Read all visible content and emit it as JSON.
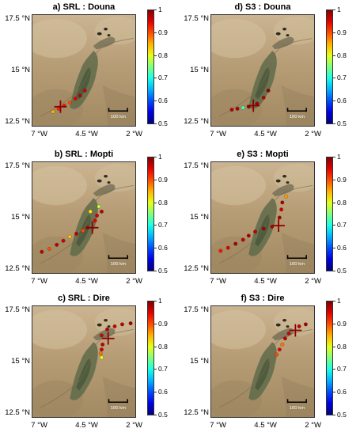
{
  "colorbar": {
    "ticks": [
      "1",
      "0.9",
      "0.8",
      "0.7",
      "0.6",
      "0.5"
    ],
    "min": 0.5,
    "max": 1.0
  },
  "axes": {
    "y_ticks": [
      {
        "label": "17.5 °N",
        "lat": 17.5
      },
      {
        "label": "15 °N",
        "lat": 15.0
      },
      {
        "label": "12.5 °N",
        "lat": 12.5
      }
    ],
    "x_ticks": [
      {
        "label": "7 °W",
        "lon": -7.0
      },
      {
        "label": "4.5 °W",
        "lon": -4.5
      },
      {
        "label": "2 °W",
        "lon": -2.0
      }
    ]
  },
  "scale_bar_label": "100 km",
  "panels": [
    {
      "title": "a) SRL : Douna",
      "station": {
        "lon": -5.9,
        "lat": 13.2
      },
      "points": [
        {
          "lon": -6.3,
          "lat": 12.95,
          "r": 0.85
        },
        {
          "lon": -6.0,
          "lat": 13.1,
          "r": 0.92
        },
        {
          "lon": -5.7,
          "lat": 13.25,
          "r": 0.93
        },
        {
          "lon": -5.4,
          "lat": 13.4,
          "r": 0.9
        },
        {
          "lon": -5.1,
          "lat": 13.6,
          "r": 0.95
        },
        {
          "lon": -4.85,
          "lat": 13.75,
          "r": 0.97
        },
        {
          "lon": -4.6,
          "lat": 14.0,
          "r": 0.96
        }
      ]
    },
    {
      "title": "d) S3 : Douna",
      "station": {
        "lon": -5.15,
        "lat": 13.25
      },
      "points": [
        {
          "lon": -6.3,
          "lat": 13.05,
          "r": 0.97
        },
        {
          "lon": -6.0,
          "lat": 13.1,
          "r": 0.98
        },
        {
          "lon": -5.7,
          "lat": 13.15,
          "r": 0.72
        },
        {
          "lon": -5.4,
          "lat": 13.2,
          "r": 0.99
        },
        {
          "lon": -4.95,
          "lat": 13.35,
          "r": 0.98
        },
        {
          "lon": -4.6,
          "lat": 13.65,
          "r": 0.97
        },
        {
          "lon": -4.35,
          "lat": 14.0,
          "r": 0.99
        }
      ]
    },
    {
      "title": "b) SRL : Mopti",
      "station": {
        "lon": -4.2,
        "lat": 14.5
      },
      "points": [
        {
          "lon": -6.9,
          "lat": 13.3,
          "r": 0.97
        },
        {
          "lon": -6.5,
          "lat": 13.45,
          "r": 0.9
        },
        {
          "lon": -6.1,
          "lat": 13.65,
          "r": 0.97
        },
        {
          "lon": -5.75,
          "lat": 13.85,
          "r": 0.96
        },
        {
          "lon": -5.4,
          "lat": 14.05,
          "r": 0.84
        },
        {
          "lon": -5.05,
          "lat": 14.2,
          "r": 0.97
        },
        {
          "lon": -4.7,
          "lat": 14.35,
          "r": 0.9
        },
        {
          "lon": -4.45,
          "lat": 14.5,
          "r": 0.97
        },
        {
          "lon": -4.05,
          "lat": 14.85,
          "r": 0.95
        },
        {
          "lon": -3.95,
          "lat": 15.1,
          "r": 0.96
        },
        {
          "lon": -4.3,
          "lat": 15.3,
          "r": 0.82
        },
        {
          "lon": -3.7,
          "lat": 15.3,
          "r": 0.97
        },
        {
          "lon": -3.85,
          "lat": 15.55,
          "r": 0.78
        }
      ]
    },
    {
      "title": "e) S3 : Mopti",
      "station": {
        "lon": -3.8,
        "lat": 14.6
      },
      "points": [
        {
          "lon": -6.9,
          "lat": 13.35,
          "r": 0.93
        },
        {
          "lon": -6.5,
          "lat": 13.5,
          "r": 0.95
        },
        {
          "lon": -6.1,
          "lat": 13.7,
          "r": 0.98
        },
        {
          "lon": -5.7,
          "lat": 13.9,
          "r": 0.97
        },
        {
          "lon": -5.4,
          "lat": 14.1,
          "r": 0.98
        },
        {
          "lon": -5.05,
          "lat": 14.3,
          "r": 0.97
        },
        {
          "lon": -4.6,
          "lat": 14.45,
          "r": 0.98
        },
        {
          "lon": -4.15,
          "lat": 14.55,
          "r": 0.97
        },
        {
          "lon": -3.75,
          "lat": 15.0,
          "r": 0.98
        },
        {
          "lon": -3.65,
          "lat": 15.4,
          "r": 0.96
        },
        {
          "lon": -3.6,
          "lat": 15.75,
          "r": 0.98
        },
        {
          "lon": -3.4,
          "lat": 16.05,
          "r": 0.86
        }
      ]
    },
    {
      "title": "c) SRL : Dire",
      "station": {
        "lon": -3.35,
        "lat": 16.15
      },
      "points": [
        {
          "lon": -3.7,
          "lat": 15.2,
          "r": 0.8
        },
        {
          "lon": -3.75,
          "lat": 15.4,
          "r": 0.88
        },
        {
          "lon": -3.7,
          "lat": 15.6,
          "r": 0.96
        },
        {
          "lon": -3.65,
          "lat": 15.85,
          "r": 0.97
        },
        {
          "lon": -3.7,
          "lat": 16.3,
          "r": 0.96
        },
        {
          "lon": -3.4,
          "lat": 16.6,
          "r": 0.97
        },
        {
          "lon": -3.0,
          "lat": 16.75,
          "r": 0.96
        },
        {
          "lon": -2.6,
          "lat": 16.85,
          "r": 0.97
        },
        {
          "lon": -2.15,
          "lat": 16.9,
          "r": 0.98
        }
      ]
    },
    {
      "title": "f) S3 : Dire",
      "station": {
        "lon": -2.9,
        "lat": 16.55
      },
      "points": [
        {
          "lon": -3.9,
          "lat": 15.35,
          "r": 0.9
        },
        {
          "lon": -3.75,
          "lat": 15.6,
          "r": 0.95
        },
        {
          "lon": -3.6,
          "lat": 15.85,
          "r": 0.88
        },
        {
          "lon": -3.45,
          "lat": 16.15,
          "r": 0.97
        },
        {
          "lon": -3.25,
          "lat": 16.4,
          "r": 0.96
        },
        {
          "lon": -2.7,
          "lat": 16.75,
          "r": 0.97
        },
        {
          "lon": -2.35,
          "lat": 16.85,
          "r": 0.98
        }
      ]
    }
  ]
}
